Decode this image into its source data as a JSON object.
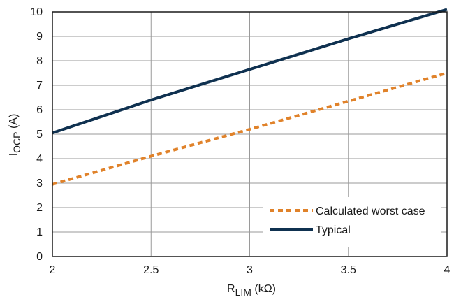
{
  "chart_data": {
    "type": "line",
    "xlabel": {
      "main": "R",
      "sub": "LIM",
      "unit": " (kΩ)"
    },
    "ylabel": {
      "main": "I",
      "sub": "OCP",
      "unit": " (A)"
    },
    "xlim": [
      2,
      4
    ],
    "ylim": [
      0,
      10
    ],
    "xticks": [
      "2",
      "2.5",
      "3",
      "3.5",
      "4"
    ],
    "yticks": [
      "0",
      "1",
      "2",
      "3",
      "4",
      "5",
      "6",
      "7",
      "8",
      "9",
      "10"
    ],
    "grid": true,
    "legend_position": "bottom-right",
    "series": [
      {
        "name": "Calculated worst case",
        "color": "#E0822A",
        "style": "dashed",
        "x": [
          2,
          2.5,
          3,
          3.5,
          4
        ],
        "y": [
          2.95,
          4.1,
          5.2,
          6.35,
          7.5
        ]
      },
      {
        "name": "Typical",
        "color": "#0F3150",
        "style": "solid",
        "x": [
          2,
          2.5,
          3,
          3.5,
          4
        ],
        "y": [
          5.05,
          6.4,
          7.65,
          8.9,
          10.1
        ]
      }
    ]
  }
}
